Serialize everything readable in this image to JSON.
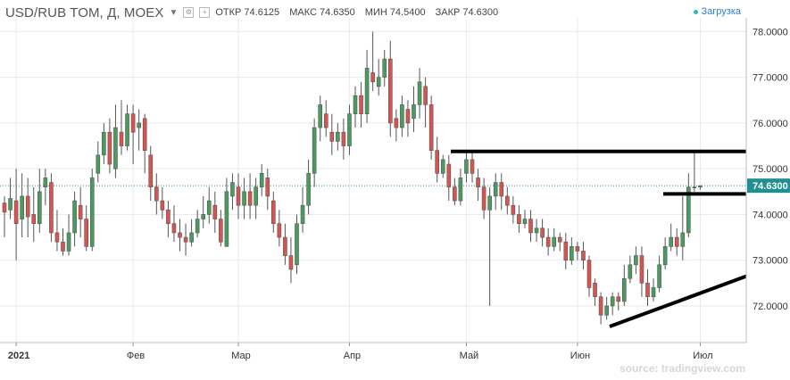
{
  "header": {
    "title": "USD/RUB TOM, Д, MOEX",
    "open_label": "ОТКР",
    "open_value": "74.6125",
    "high_label": "МАКС",
    "high_value": "74.6350",
    "low_label": "МИН",
    "low_value": "74.5400",
    "close_label": "ЗАКР",
    "close_value": "74.6300",
    "loading": "Загрузка"
  },
  "source": "source: tradingview.com",
  "price_tag": "74.6300",
  "colors": {
    "up": "#4a9b5e",
    "down": "#d9534f",
    "grid": "#eaeaea",
    "trendline": "#000000",
    "price_tag": "#1f8f8f"
  },
  "chart_data": {
    "type": "candlestick",
    "y_ticks": [
      "72.0000",
      "73.0000",
      "74.0000",
      "75.0000",
      "76.0000",
      "77.0000",
      "78.0000"
    ],
    "ylim": [
      71.2,
      78.3
    ],
    "x_labels": [
      {
        "label": "2021",
        "index": 2
      },
      {
        "label": "Фев",
        "index": 22
      },
      {
        "label": "Мар",
        "index": 40
      },
      {
        "label": "Апр",
        "index": 59
      },
      {
        "label": "Май",
        "index": 79
      },
      {
        "label": "Июн",
        "index": 98
      },
      {
        "label": "Июл",
        "index": 119
      }
    ],
    "current_price": 74.63,
    "candles": [
      [
        74.25,
        74.05,
        74.4,
        73.5
      ],
      [
        74.1,
        74.35,
        74.8,
        73.9
      ],
      [
        74.3,
        73.8,
        75.0,
        73.0
      ],
      [
        73.9,
        74.4,
        74.9,
        73.5
      ],
      [
        74.4,
        73.95,
        74.8,
        73.5
      ],
      [
        74.0,
        73.8,
        74.6,
        73.4
      ],
      [
        73.8,
        74.5,
        75.0,
        73.6
      ],
      [
        74.6,
        74.8,
        75.0,
        74.2
      ],
      [
        74.7,
        73.6,
        74.9,
        73.4
      ],
      [
        73.6,
        73.4,
        74.1,
        73.2
      ],
      [
        73.4,
        73.2,
        73.7,
        73.1
      ],
      [
        73.2,
        73.6,
        74.0,
        73.1
      ],
      [
        73.6,
        74.3,
        74.5,
        73.3
      ],
      [
        74.2,
        73.9,
        74.6,
        73.5
      ],
      [
        73.9,
        73.3,
        74.2,
        73.2
      ],
      [
        73.3,
        74.8,
        75.0,
        73.2
      ],
      [
        74.9,
        75.3,
        75.6,
        74.7
      ],
      [
        75.3,
        75.8,
        76.0,
        75.1
      ],
      [
        75.8,
        75.1,
        76.1,
        74.9
      ],
      [
        75.0,
        75.9,
        76.4,
        74.8
      ],
      [
        75.8,
        75.5,
        76.5,
        75.3
      ],
      [
        75.5,
        76.2,
        76.4,
        75.4
      ],
      [
        76.2,
        75.8,
        76.4,
        75.1
      ],
      [
        75.9,
        76.0,
        76.3,
        75.4
      ],
      [
        76.1,
        75.4,
        76.2,
        74.9
      ],
      [
        75.3,
        74.6,
        75.5,
        74.3
      ],
      [
        74.6,
        74.3,
        74.9,
        74.0
      ],
      [
        74.3,
        74.1,
        74.6,
        73.9
      ],
      [
        74.1,
        73.8,
        74.3,
        73.5
      ],
      [
        73.8,
        73.6,
        74.2,
        73.4
      ],
      [
        73.6,
        73.5,
        73.9,
        73.2
      ],
      [
        73.5,
        73.4,
        73.8,
        73.1
      ],
      [
        73.4,
        73.6,
        73.9,
        73.3
      ],
      [
        73.6,
        73.9,
        74.1,
        73.5
      ],
      [
        73.9,
        74.0,
        74.4,
        73.7
      ],
      [
        74.0,
        74.3,
        74.6,
        73.8
      ],
      [
        74.2,
        73.9,
        74.5,
        73.6
      ],
      [
        73.9,
        73.4,
        74.1,
        73.3
      ],
      [
        73.3,
        74.5,
        74.8,
        73.3
      ],
      [
        74.4,
        74.7,
        74.9,
        74.1
      ],
      [
        74.6,
        74.2,
        74.9,
        73.9
      ],
      [
        74.2,
        74.5,
        74.8,
        73.9
      ],
      [
        74.5,
        74.2,
        74.9,
        73.9
      ],
      [
        74.2,
        74.6,
        74.8,
        73.9
      ],
      [
        74.6,
        74.9,
        75.1,
        74.4
      ],
      [
        74.8,
        74.4,
        75.0,
        74.1
      ],
      [
        74.3,
        73.8,
        74.5,
        73.6
      ],
      [
        73.8,
        73.5,
        74.1,
        73.3
      ],
      [
        73.5,
        73.1,
        73.8,
        72.9
      ],
      [
        73.1,
        72.8,
        73.5,
        72.5
      ],
      [
        72.9,
        73.8,
        74.0,
        72.7
      ],
      [
        73.8,
        74.2,
        74.6,
        73.6
      ],
      [
        74.2,
        74.9,
        75.2,
        74.0
      ],
      [
        74.9,
        75.9,
        76.1,
        74.6
      ],
      [
        75.9,
        76.4,
        76.6,
        75.6
      ],
      [
        76.2,
        75.9,
        76.5,
        75.7
      ],
      [
        75.8,
        75.6,
        76.2,
        75.3
      ],
      [
        75.6,
        75.8,
        76.0,
        75.4
      ],
      [
        75.8,
        75.5,
        76.1,
        75.2
      ],
      [
        75.5,
        76.2,
        76.4,
        75.3
      ],
      [
        76.2,
        76.6,
        76.8,
        75.9
      ],
      [
        76.6,
        76.2,
        76.9,
        75.9
      ],
      [
        76.2,
        77.2,
        77.6,
        76.0
      ],
      [
        77.1,
        76.9,
        78.0,
        76.7
      ],
      [
        76.8,
        77.0,
        77.4,
        76.6
      ],
      [
        77.0,
        77.4,
        77.6,
        76.8
      ],
      [
        77.4,
        76.0,
        77.8,
        75.7
      ],
      [
        76.1,
        75.9,
        76.3,
        75.6
      ],
      [
        75.9,
        76.4,
        76.6,
        75.7
      ],
      [
        76.3,
        76.0,
        76.5,
        75.7
      ],
      [
        76.1,
        76.4,
        76.8,
        75.8
      ],
      [
        76.4,
        76.9,
        77.2,
        76.1
      ],
      [
        76.8,
        76.4,
        77.0,
        75.9
      ],
      [
        76.4,
        75.4,
        76.6,
        75.2
      ],
      [
        75.4,
        74.9,
        75.7,
        74.7
      ],
      [
        74.9,
        75.2,
        75.3,
        74.8
      ],
      [
        75.1,
        74.6,
        75.3,
        74.3
      ],
      [
        74.6,
        74.3,
        74.8,
        74.2
      ],
      [
        74.3,
        74.8,
        75.0,
        74.2
      ],
      [
        74.9,
        75.2,
        75.4,
        74.7
      ],
      [
        75.2,
        74.9,
        75.4,
        74.7
      ],
      [
        74.8,
        74.6,
        75.0,
        74.3
      ],
      [
        74.6,
        74.1,
        74.8,
        73.9
      ],
      [
        74.1,
        74.4,
        74.6,
        72.0
      ],
      [
        74.4,
        74.7,
        74.9,
        74.1
      ],
      [
        74.7,
        74.4,
        74.9,
        74.1
      ],
      [
        74.4,
        74.2,
        74.6,
        74.0
      ],
      [
        74.2,
        74.0,
        74.4,
        73.8
      ],
      [
        74.0,
        73.8,
        74.2,
        73.6
      ],
      [
        73.8,
        73.9,
        74.1,
        73.7
      ],
      [
        73.9,
        73.6,
        74.1,
        73.4
      ],
      [
        73.6,
        73.7,
        73.9,
        73.4
      ],
      [
        73.7,
        73.5,
        73.9,
        73.3
      ],
      [
        73.5,
        73.3,
        73.7,
        73.1
      ],
      [
        73.3,
        73.5,
        73.7,
        73.2
      ],
      [
        73.5,
        73.4,
        73.6,
        73.2
      ],
      [
        73.4,
        73.0,
        73.6,
        72.8
      ],
      [
        73.0,
        73.3,
        73.5,
        72.9
      ],
      [
        73.3,
        73.2,
        73.4,
        73.0
      ],
      [
        73.2,
        73.0,
        73.4,
        72.8
      ],
      [
        73.0,
        72.4,
        73.1,
        72.2
      ],
      [
        72.5,
        72.2,
        72.6,
        72.0
      ],
      [
        72.2,
        71.8,
        72.3,
        71.6
      ],
      [
        71.8,
        72.0,
        72.2,
        71.7
      ],
      [
        72.0,
        72.2,
        72.3,
        71.8
      ],
      [
        72.2,
        72.1,
        72.3,
        71.9
      ],
      [
        72.1,
        72.6,
        72.9,
        72.0
      ],
      [
        72.6,
        72.9,
        73.1,
        72.5
      ],
      [
        72.9,
        73.1,
        73.3,
        72.7
      ],
      [
        73.1,
        72.5,
        73.3,
        72.2
      ],
      [
        72.5,
        72.2,
        72.8,
        72.0
      ],
      [
        72.2,
        72.4,
        72.6,
        72.1
      ],
      [
        72.4,
        72.9,
        73.1,
        72.3
      ],
      [
        72.9,
        73.3,
        73.5,
        72.8
      ],
      [
        73.3,
        73.5,
        73.8,
        73.2
      ],
      [
        73.5,
        73.3,
        73.7,
        73.1
      ],
      [
        73.3,
        73.6,
        74.4,
        73.0
      ],
      [
        73.6,
        74.6,
        74.9,
        73.5
      ],
      [
        74.6,
        74.6,
        75.4,
        74.5
      ],
      [
        74.6,
        74.63,
        74.635,
        74.54
      ]
    ]
  }
}
